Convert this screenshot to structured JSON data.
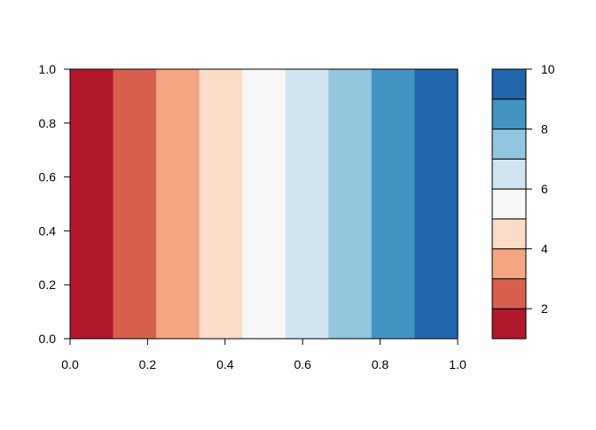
{
  "chart_data": {
    "type": "heatmap",
    "title": "",
    "xlabel": "",
    "ylabel": "",
    "xlim": [
      0,
      1
    ],
    "ylim": [
      0,
      1
    ],
    "x_ticks": [
      "0.0",
      "0.2",
      "0.4",
      "0.6",
      "0.8",
      "1.0"
    ],
    "y_ticks": [
      "0.0",
      "0.2",
      "0.4",
      "0.6",
      "0.8",
      "1.0"
    ],
    "bands": [
      {
        "x_from": 0.0,
        "x_to": 0.1111,
        "color": "#B2182B"
      },
      {
        "x_from": 0.1111,
        "x_to": 0.2222,
        "color": "#D6604D"
      },
      {
        "x_from": 0.2222,
        "x_to": 0.3333,
        "color": "#F4A582"
      },
      {
        "x_from": 0.3333,
        "x_to": 0.4444,
        "color": "#FDDBC7"
      },
      {
        "x_from": 0.4444,
        "x_to": 0.5556,
        "color": "#F7F7F7"
      },
      {
        "x_from": 0.5556,
        "x_to": 0.6667,
        "color": "#D1E5F0"
      },
      {
        "x_from": 0.6667,
        "x_to": 0.7778,
        "color": "#92C5DE"
      },
      {
        "x_from": 0.7778,
        "x_to": 0.8889,
        "color": "#4393C3"
      },
      {
        "x_from": 0.8889,
        "x_to": 1.0,
        "color": "#2166AC"
      }
    ],
    "colorbar": {
      "range": [
        1,
        10
      ],
      "levels": [
        {
          "from": 1,
          "to": 2,
          "color": "#B2182B"
        },
        {
          "from": 2,
          "to": 3,
          "color": "#D6604D"
        },
        {
          "from": 3,
          "to": 4,
          "color": "#F4A582"
        },
        {
          "from": 4,
          "to": 5,
          "color": "#FDDBC7"
        },
        {
          "from": 5,
          "to": 6,
          "color": "#F7F7F7"
        },
        {
          "from": 6,
          "to": 7,
          "color": "#D1E5F0"
        },
        {
          "from": 7,
          "to": 8,
          "color": "#92C5DE"
        },
        {
          "from": 8,
          "to": 9,
          "color": "#4393C3"
        },
        {
          "from": 9,
          "to": 10,
          "color": "#2166AC"
        }
      ],
      "ticks": [
        2,
        4,
        6,
        8,
        10
      ],
      "tick_labels": [
        "2",
        "4",
        "6",
        "8",
        "10"
      ]
    }
  }
}
